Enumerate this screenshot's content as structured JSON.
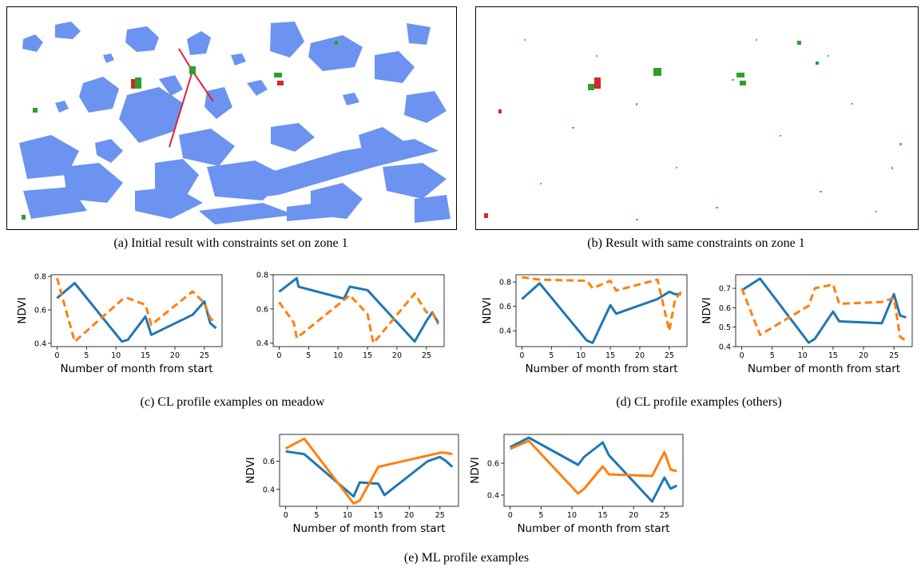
{
  "captions": {
    "a": "(a) Initial result with constraints set on zone 1",
    "b": "(b) Result with same constraints on zone 1",
    "c": "(c) CL profile examples on meadow",
    "d": "(d) CL profile examples (others)",
    "e": "(e) ML profile examples"
  },
  "colors": {
    "blue_regions": "#6b93ef",
    "line_blue": "#1f77b4",
    "line_orange": "#ff7f0e",
    "constraint_red": "#e02040",
    "marker_green": "#2ca02c",
    "marker_red": "#d62728"
  },
  "chart_data": [
    {
      "id": "c1",
      "type": "line",
      "xlabel": "Number of month from start",
      "ylabel": "NDVI",
      "xlim": [
        -1,
        28
      ],
      "ylim": [
        0.38,
        0.81
      ],
      "xticks": [
        0,
        5,
        10,
        15,
        20,
        25
      ],
      "yticks": [
        0.4,
        0.6,
        0.8
      ],
      "ytick_labels": [
        "0.4",
        "0.6",
        "0.8"
      ],
      "series": [
        {
          "style": "solid",
          "color": "#1f77b4",
          "points": [
            [
              0,
              0.67
            ],
            [
              3,
              0.76
            ],
            [
              11,
              0.41
            ],
            [
              12,
              0.42
            ],
            [
              15,
              0.56
            ],
            [
              16,
              0.45
            ],
            [
              23,
              0.57
            ],
            [
              25,
              0.65
            ],
            [
              26,
              0.52
            ],
            [
              27,
              0.49
            ]
          ]
        },
        {
          "style": "dashed",
          "color": "#ff7f0e",
          "points": [
            [
              0,
              0.79
            ],
            [
              3,
              0.41
            ],
            [
              11,
              0.66
            ],
            [
              12,
              0.67
            ],
            [
              15,
              0.63
            ],
            [
              16,
              0.51
            ],
            [
              23,
              0.71
            ],
            [
              25,
              0.64
            ],
            [
              26,
              0.55
            ],
            [
              27,
              0.52
            ]
          ]
        }
      ]
    },
    {
      "id": "c2",
      "type": "line",
      "xlabel": "",
      "ylabel": "",
      "xlim": [
        -1,
        28
      ],
      "ylim": [
        0.38,
        0.8
      ],
      "xticks": [
        0,
        5,
        10,
        15,
        20,
        25
      ],
      "yticks": [
        0.4,
        0.6,
        0.8
      ],
      "ytick_labels": [
        "0.4",
        "0.6",
        "0.8"
      ],
      "series": [
        {
          "style": "solid",
          "color": "#1f77b4",
          "points": [
            [
              0,
              0.7
            ],
            [
              3,
              0.78
            ],
            [
              3.3,
              0.73
            ],
            [
              11,
              0.66
            ],
            [
              12,
              0.73
            ],
            [
              15,
              0.71
            ],
            [
              23,
              0.41
            ],
            [
              25,
              0.53
            ],
            [
              26,
              0.58
            ],
            [
              27,
              0.52
            ]
          ]
        },
        {
          "style": "dashed",
          "color": "#ff7f0e",
          "points": [
            [
              0,
              0.64
            ],
            [
              2.5,
              0.52
            ],
            [
              3,
              0.43
            ],
            [
              12,
              0.68
            ],
            [
              15,
              0.57
            ],
            [
              16,
              0.4
            ],
            [
              23,
              0.69
            ],
            [
              25,
              0.58
            ],
            [
              26,
              0.58
            ],
            [
              27,
              0.51
            ]
          ]
        }
      ]
    },
    {
      "id": "d1",
      "type": "line",
      "xlabel": "Number of month from start",
      "ylabel": "NDVI",
      "xlim": [
        -1,
        28
      ],
      "ylim": [
        0.27,
        0.86
      ],
      "xticks": [
        0,
        5,
        10,
        15,
        20,
        25
      ],
      "yticks": [
        0.4,
        0.6,
        0.8
      ],
      "ytick_labels": [
        "0.4",
        "0.6",
        "0.8"
      ],
      "series": [
        {
          "style": "solid",
          "color": "#1f77b4",
          "points": [
            [
              0,
              0.66
            ],
            [
              3,
              0.79
            ],
            [
              11,
              0.32
            ],
            [
              12,
              0.3
            ],
            [
              15,
              0.61
            ],
            [
              16,
              0.54
            ],
            [
              23,
              0.66
            ],
            [
              25,
              0.72
            ],
            [
              26,
              0.7
            ],
            [
              27,
              0.7
            ]
          ]
        },
        {
          "style": "dashed",
          "color": "#ff7f0e",
          "points": [
            [
              0,
              0.84
            ],
            [
              3,
              0.82
            ],
            [
              11,
              0.81
            ],
            [
              12,
              0.75
            ],
            [
              15,
              0.81
            ],
            [
              16,
              0.73
            ],
            [
              23,
              0.82
            ],
            [
              25,
              0.4
            ],
            [
              26,
              0.66
            ],
            [
              27,
              0.72
            ]
          ]
        }
      ]
    },
    {
      "id": "d2",
      "type": "line",
      "xlabel": "Number of month from start",
      "ylabel": "NDVI",
      "xlim": [
        -1,
        28
      ],
      "ylim": [
        0.4,
        0.77
      ],
      "xticks": [
        0,
        5,
        10,
        15,
        20,
        25
      ],
      "yticks": [
        0.4,
        0.5,
        0.6,
        0.7
      ],
      "ytick_labels": [
        "0.4",
        "0.5",
        "0.6",
        "0.7"
      ],
      "series": [
        {
          "style": "solid",
          "color": "#1f77b4",
          "points": [
            [
              0,
              0.69
            ],
            [
              3,
              0.75
            ],
            [
              11,
              0.42
            ],
            [
              12,
              0.44
            ],
            [
              15,
              0.58
            ],
            [
              16,
              0.53
            ],
            [
              23,
              0.52
            ],
            [
              25,
              0.67
            ],
            [
              26,
              0.56
            ],
            [
              27,
              0.55
            ]
          ]
        },
        {
          "style": "dashed",
          "color": "#ff7f0e",
          "points": [
            [
              0,
              0.7
            ],
            [
              3,
              0.46
            ],
            [
              11,
              0.61
            ],
            [
              12,
              0.7
            ],
            [
              15,
              0.72
            ],
            [
              16,
              0.62
            ],
            [
              23,
              0.63
            ],
            [
              25,
              0.65
            ],
            [
              26,
              0.45
            ],
            [
              27,
              0.43
            ]
          ]
        }
      ]
    },
    {
      "id": "e1",
      "type": "line",
      "xlabel": "Number of month from start",
      "ylabel": "NDVI",
      "xlim": [
        -1,
        28
      ],
      "ylim": [
        0.28,
        0.79
      ],
      "xticks": [
        0,
        5,
        10,
        15,
        20,
        25
      ],
      "yticks": [
        0.4,
        0.6
      ],
      "ytick_labels": [
        "0.4",
        "0.6"
      ],
      "series": [
        {
          "style": "solid",
          "color": "#1f77b4",
          "points": [
            [
              0,
              0.67
            ],
            [
              3,
              0.65
            ],
            [
              11,
              0.35
            ],
            [
              12,
              0.45
            ],
            [
              15,
              0.44
            ],
            [
              16,
              0.36
            ],
            [
              23,
              0.6
            ],
            [
              25,
              0.63
            ],
            [
              26,
              0.6
            ],
            [
              27,
              0.56
            ]
          ]
        },
        {
          "style": "solid",
          "color": "#ff7f0e",
          "points": [
            [
              0,
              0.69
            ],
            [
              3,
              0.76
            ],
            [
              11,
              0.3
            ],
            [
              12,
              0.32
            ],
            [
              15,
              0.56
            ],
            [
              16,
              0.57
            ],
            [
              23,
              0.64
            ],
            [
              25,
              0.66
            ],
            [
              26,
              0.66
            ],
            [
              27,
              0.65
            ]
          ]
        }
      ]
    },
    {
      "id": "e2",
      "type": "line",
      "xlabel": "Number of month from start",
      "ylabel": "NDVI",
      "xlim": [
        -1,
        28
      ],
      "ylim": [
        0.33,
        0.78
      ],
      "xticks": [
        0,
        5,
        10,
        15,
        20,
        25
      ],
      "yticks": [
        0.4,
        0.6
      ],
      "ytick_labels": [
        "0.4",
        "0.6"
      ],
      "series": [
        {
          "style": "solid",
          "color": "#1f77b4",
          "points": [
            [
              0,
              0.7
            ],
            [
              3,
              0.76
            ],
            [
              11,
              0.59
            ],
            [
              12,
              0.64
            ],
            [
              15,
              0.73
            ],
            [
              16,
              0.65
            ],
            [
              23,
              0.36
            ],
            [
              25,
              0.51
            ],
            [
              26,
              0.44
            ],
            [
              27,
              0.46
            ]
          ]
        },
        {
          "style": "solid",
          "color": "#ff7f0e",
          "points": [
            [
              0,
              0.69
            ],
            [
              3,
              0.74
            ],
            [
              11,
              0.41
            ],
            [
              12,
              0.44
            ],
            [
              15,
              0.58
            ],
            [
              16,
              0.53
            ],
            [
              23,
              0.52
            ],
            [
              25,
              0.67
            ],
            [
              26,
              0.56
            ],
            [
              27,
              0.55
            ]
          ]
        }
      ]
    }
  ]
}
